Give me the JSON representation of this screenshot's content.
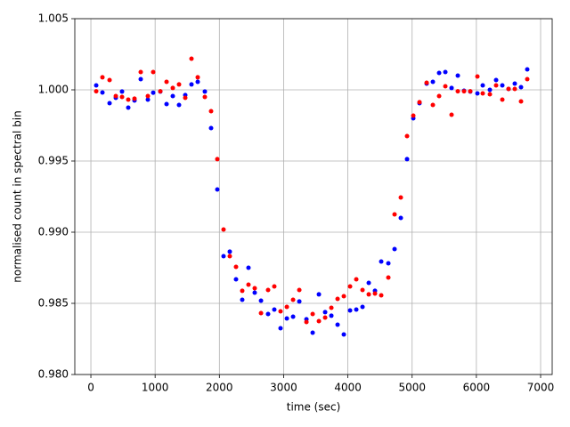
{
  "chart_data": {
    "type": "scatter",
    "xlabel": "time (sec)",
    "ylabel": "normalised count in spectral bin",
    "x": [
      83,
      180,
      291,
      388,
      485,
      582,
      679,
      776,
      887,
      970,
      1081,
      1178,
      1275,
      1372,
      1469,
      1566,
      1663,
      1774,
      1871,
      1968,
      2065,
      2162,
      2259,
      2356,
      2453,
      2550,
      2648,
      2758,
      2855,
      2952,
      3050,
      3147,
      3244,
      3355,
      3452,
      3549,
      3646,
      3743,
      3840,
      3937,
      4034,
      4131,
      4228,
      4325,
      4422,
      4519,
      4630,
      4727,
      4824,
      4921,
      5018,
      5115,
      5226,
      5323,
      5420,
      5517,
      5614,
      5711,
      5808,
      5905,
      6016,
      6099,
      6210,
      6307,
      6404,
      6501,
      6598,
      6695,
      6792
    ],
    "series": [
      {
        "color": "#0000ff",
        "values": [
          1.00031,
          0.99981,
          0.99906,
          0.99944,
          0.99988,
          0.99875,
          0.99925,
          1.00075,
          0.99931,
          0.9998,
          0.99988,
          0.999,
          0.99956,
          0.99894,
          0.99963,
          1.00038,
          1.00056,
          0.99988,
          0.99731,
          0.993,
          0.98831,
          0.98863,
          0.98669,
          0.98525,
          0.9875,
          0.98575,
          0.98519,
          0.98425,
          0.98456,
          0.98325,
          0.98394,
          0.98406,
          0.98513,
          0.98388,
          0.98294,
          0.98563,
          0.98438,
          0.98413,
          0.9835,
          0.98281,
          0.9845,
          0.98456,
          0.98475,
          0.98644,
          0.98588,
          0.98794,
          0.98781,
          0.98881,
          0.991,
          0.99513,
          0.998,
          0.99906,
          1.00044,
          1.00056,
          1.00119,
          1.00125,
          1.00013,
          1.001,
          0.99994,
          0.99988,
          0.99975,
          1.00031,
          1.0,
          1.00069,
          1.00031,
          1.00006,
          1.00044,
          1.00019,
          1.00144
        ]
      },
      {
        "color": "#ff0000",
        "values": [
          0.9999,
          1.00088,
          1.00069,
          0.99956,
          0.9995,
          0.99931,
          0.99938,
          1.00125,
          0.99956,
          1.00125,
          0.9999,
          1.00056,
          1.00013,
          1.00038,
          0.99944,
          1.00219,
          1.00088,
          0.9995,
          0.9985,
          0.99513,
          0.99019,
          0.98831,
          0.98756,
          0.98588,
          0.98631,
          0.98606,
          0.98431,
          0.98594,
          0.98619,
          0.98444,
          0.98475,
          0.98525,
          0.98594,
          0.98369,
          0.98425,
          0.98375,
          0.984,
          0.98469,
          0.98531,
          0.9855,
          0.98619,
          0.98669,
          0.98594,
          0.98563,
          0.98569,
          0.98556,
          0.98681,
          0.99125,
          0.99244,
          0.99675,
          0.99819,
          0.99913,
          1.0005,
          0.99894,
          0.99956,
          1.00025,
          0.99825,
          0.9999,
          0.9999,
          0.9999,
          1.00094,
          0.99975,
          0.99969,
          1.00031,
          0.99931,
          1.00006,
          1.00006,
          0.99919,
          1.00075
        ]
      }
    ],
    "xlim": [
      -250,
      7180
    ],
    "ylim": [
      0.98,
      1.005
    ],
    "xticks": [
      0,
      1000,
      2000,
      3000,
      4000,
      5000,
      6000,
      7000
    ],
    "yticks": [
      {
        "value": 0.98,
        "label": "0.980"
      },
      0.985,
      {
        "value": 0.99,
        "label": "0.990"
      },
      0.995,
      {
        "value": 1.0,
        "label": "1.000"
      },
      1.005
    ],
    "grid": true
  }
}
